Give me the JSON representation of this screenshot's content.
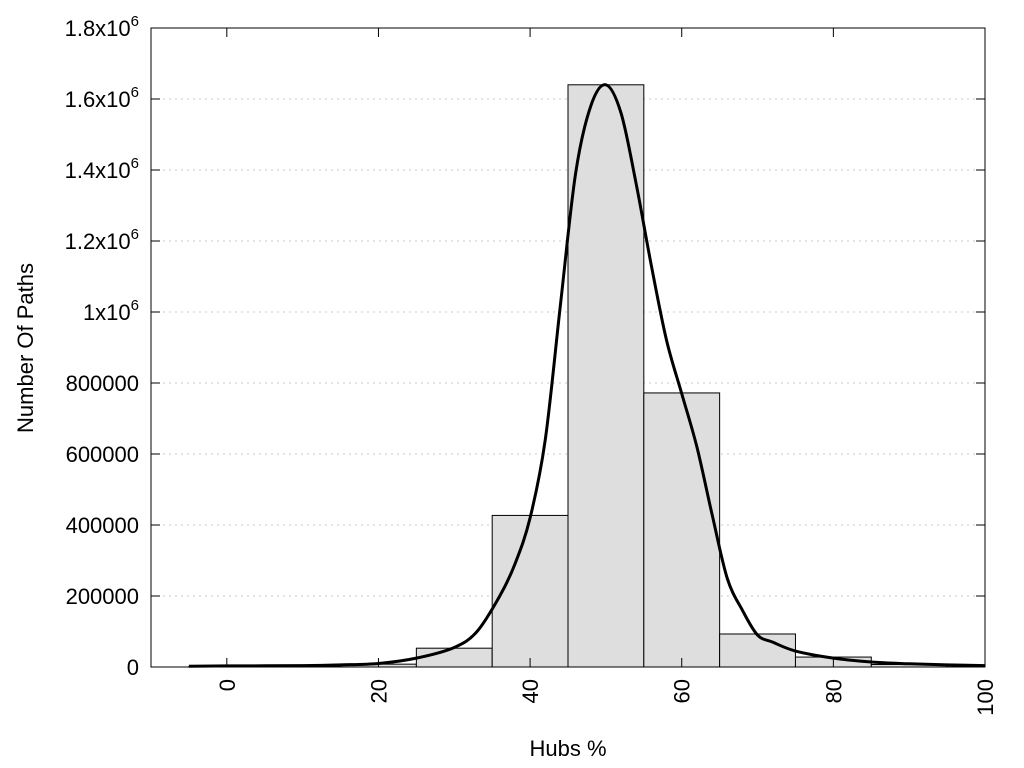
{
  "chart_data": {
    "type": "bar",
    "xlabel": "Hubs %",
    "ylabel": "Number Of Paths",
    "xlim": [
      -10,
      100
    ],
    "ylim": [
      0,
      1800000
    ],
    "grid": "horizontal dotted",
    "bin_width": 10,
    "bins": [
      {
        "center": 0,
        "value": 1500
      },
      {
        "center": 10,
        "value": 2500
      },
      {
        "center": 20,
        "value": 8000
      },
      {
        "center": 30,
        "value": 53000
      },
      {
        "center": 40,
        "value": 427000
      },
      {
        "center": 50,
        "value": 1640000
      },
      {
        "center": 60,
        "value": 772000
      },
      {
        "center": 70,
        "value": 93000
      },
      {
        "center": 80,
        "value": 28000
      },
      {
        "center": 90,
        "value": 7000
      }
    ],
    "fit_curve": {
      "x": [
        -5,
        0,
        10,
        15,
        20,
        25,
        30,
        33,
        36,
        38,
        40,
        42,
        44,
        46,
        48,
        50,
        52,
        54,
        56,
        58,
        60,
        62,
        64,
        66,
        68,
        70,
        72,
        75,
        80,
        85,
        90,
        95,
        100
      ],
      "y": [
        2000,
        3000,
        4000,
        6000,
        10000,
        25000,
        55000,
        100000,
        200000,
        290000,
        420000,
        640000,
        1020000,
        1390000,
        1580000,
        1640000,
        1560000,
        1360000,
        1130000,
        920000,
        770000,
        620000,
        430000,
        250000,
        160000,
        90000,
        70000,
        45000,
        25000,
        14000,
        9000,
        6000,
        4000
      ]
    },
    "x_ticks": [
      {
        "value": 0,
        "label": "0"
      },
      {
        "value": 20,
        "label": "20"
      },
      {
        "value": 40,
        "label": "40"
      },
      {
        "value": 60,
        "label": "60"
      },
      {
        "value": 80,
        "label": "80"
      },
      {
        "value": 100,
        "label": "100"
      }
    ],
    "y_ticks": [
      {
        "value": 0,
        "mantissa": "0",
        "exp": ""
      },
      {
        "value": 200000,
        "mantissa": "200000",
        "exp": ""
      },
      {
        "value": 400000,
        "mantissa": "400000",
        "exp": ""
      },
      {
        "value": 600000,
        "mantissa": "600000",
        "exp": ""
      },
      {
        "value": 800000,
        "mantissa": "800000",
        "exp": ""
      },
      {
        "value": 1000000,
        "mantissa": "1x10",
        "exp": "6"
      },
      {
        "value": 1200000,
        "mantissa": "1.2x10",
        "exp": "6"
      },
      {
        "value": 1400000,
        "mantissa": "1.4x10",
        "exp": "6"
      },
      {
        "value": 1600000,
        "mantissa": "1.6x10",
        "exp": "6"
      },
      {
        "value": 1800000,
        "mantissa": "1.8x10",
        "exp": "6"
      }
    ]
  }
}
